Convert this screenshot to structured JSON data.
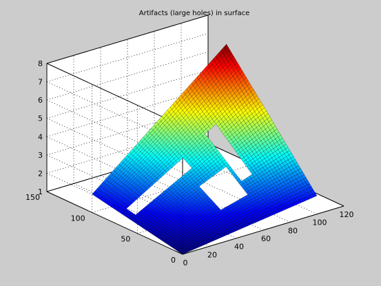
{
  "figure": {
    "background_color": "#cccccc",
    "axes_color": "#ffffff"
  },
  "chart_data": {
    "type": "surface",
    "title": "Artifacts (large holes) in surface",
    "xlabel": "",
    "ylabel": "",
    "zlabel": "",
    "grid": true,
    "box": true,
    "colormap": "jet",
    "xlim": [
      0,
      120
    ],
    "ylim": [
      0,
      150
    ],
    "zlim": [
      1,
      8
    ],
    "x_ticks": [
      0,
      20,
      40,
      60,
      80,
      100,
      120
    ],
    "y_ticks": [
      0,
      50,
      100,
      150
    ],
    "z_ticks": [
      1,
      2,
      3,
      4,
      5,
      6,
      7,
      8
    ],
    "surface": {
      "x_range": [
        0,
        100
      ],
      "y_range": [
        0,
        100
      ],
      "z_at_corners": {
        "x0_y0": 1,
        "x100_y0": 2,
        "x0_y100": 2,
        "x100_y100": 8
      },
      "holes": [
        {
          "x": [
            5,
            45
          ],
          "y": [
            58,
            68
          ]
        },
        {
          "x": [
            64,
            72
          ],
          "y": [
            30,
            70
          ]
        },
        {
          "x": [
            42,
            62
          ],
          "y": [
            20,
            44
          ]
        }
      ]
    }
  }
}
